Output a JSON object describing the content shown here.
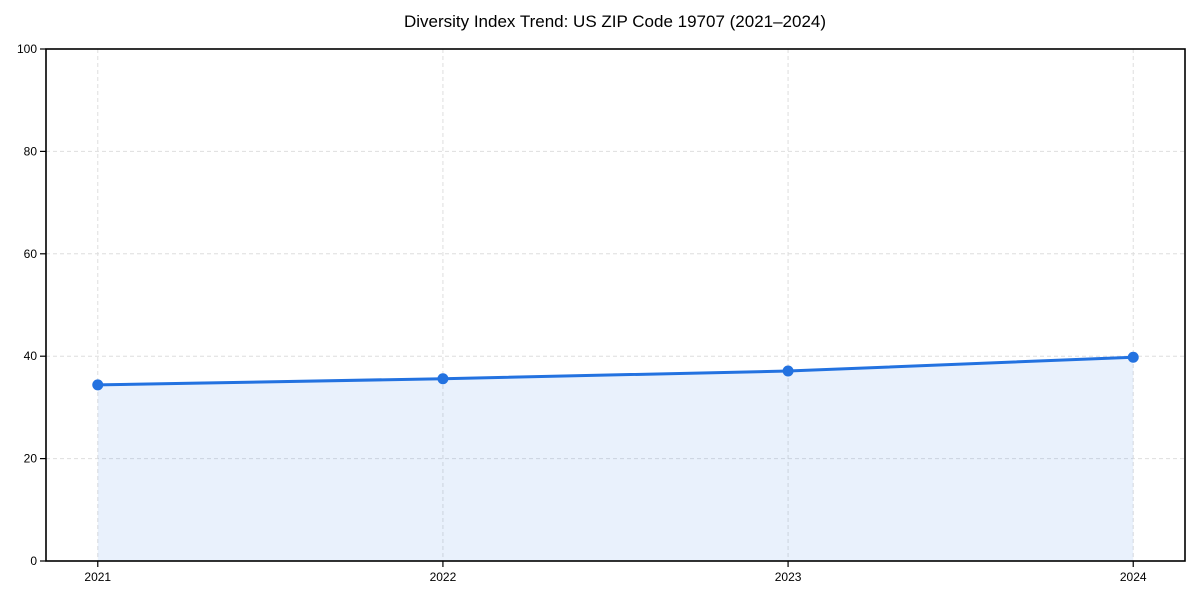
{
  "page": {
    "background_color": "#ffffff"
  },
  "chart_data": {
    "type": "line",
    "title": "Diversity Index Trend: US ZIP Code 19707 (2021–2024)",
    "series_name": "Diversity Index",
    "x": [
      2021,
      2022,
      2023,
      2024
    ],
    "xtick_labels": [
      "2021",
      "2022",
      "2023",
      "2024"
    ],
    "values": [
      34.4,
      35.6,
      37.1,
      39.8
    ],
    "xlabel": "",
    "ylabel": "",
    "xlim": [
      2020.85,
      2024.15
    ],
    "ylim": [
      0,
      100
    ],
    "yticks": [
      0,
      20,
      40,
      60,
      80,
      100
    ],
    "xticks": [
      2021,
      2022,
      2023,
      2024
    ],
    "grid": true,
    "grid_style": "dashed",
    "grid_color": "#dedede",
    "legend_position": "none",
    "line_color": "#2372e0",
    "marker_color": "#2372e0",
    "marker_shape": "circle",
    "marker_radius": 5.5,
    "area_fill": true,
    "fill_color": "rgba(35,114,224,0.10)",
    "axis_color": "#000000",
    "text_color": "#000000"
  }
}
